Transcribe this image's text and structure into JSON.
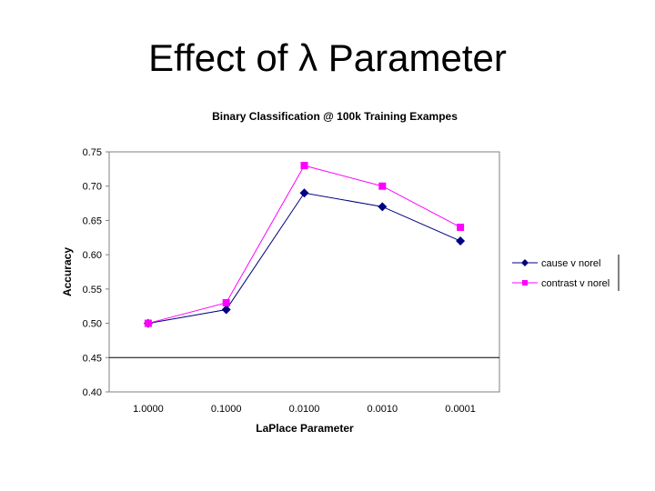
{
  "slide": {
    "title": "Effect of  λ Parameter"
  },
  "chart_data": {
    "type": "line",
    "title": "Binary Classification @ 100k Training Exampes",
    "xlabel": "LaPlace Parameter",
    "ylabel": "Accuracy",
    "categories": [
      "1.0000",
      "0.1000",
      "0.0100",
      "0.0010",
      "0.0001"
    ],
    "y_ticks": [
      "0.75",
      "0.70",
      "0.65",
      "0.60",
      "0.55",
      "0.50",
      "0.45",
      "0.40"
    ],
    "ylim": [
      0.4,
      0.75
    ],
    "y_tick_step": 0.05,
    "grid": "horizontal line at 0.45 only",
    "legend_position": "right",
    "plot_background": "#ffffff",
    "series": [
      {
        "name": "cause v norel",
        "values": [
          0.5,
          0.52,
          0.69,
          0.67,
          0.62
        ],
        "color": "#000080",
        "marker": "diamond"
      },
      {
        "name": "contrast v norel",
        "values": [
          0.5,
          0.53,
          0.73,
          0.7,
          0.64
        ],
        "color": "#ff00ff",
        "marker": "square"
      }
    ]
  }
}
